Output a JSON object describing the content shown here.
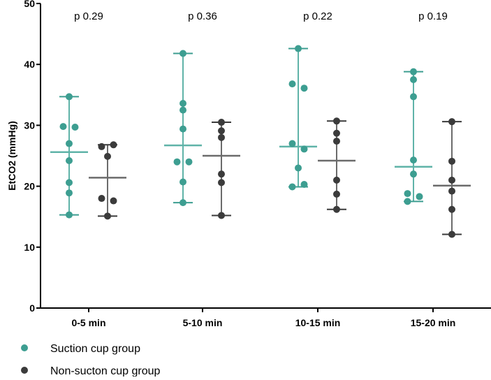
{
  "chart_data": {
    "type": "scatter",
    "title": "",
    "ylabel": "EtCO2 (mmHg)",
    "xlabel": "",
    "ylim": [
      0,
      50
    ],
    "yticks": [
      0,
      10,
      20,
      30,
      40,
      50
    ],
    "categories": [
      "0-5 min",
      "5-10 min",
      "10-15 min",
      "15-20 min"
    ],
    "annotations": [
      "p 0.29",
      "p 0.36",
      "p 0.22",
      "p 0.19"
    ],
    "legend_position": "bottom-left",
    "series": [
      {
        "name": "Suction cup group",
        "color": "#3d9e91",
        "points": [
          [
            34.7,
            29.8,
            29.7,
            27.0,
            24.2,
            20.6,
            18.9,
            15.3
          ],
          [
            41.8,
            33.6,
            32.5,
            29.4,
            24.0,
            24.0,
            20.7,
            17.3
          ],
          [
            42.6,
            36.8,
            36.1,
            27.0,
            26.1,
            23.0,
            20.3,
            19.9
          ],
          [
            38.8,
            37.5,
            34.7,
            24.3,
            22.0,
            18.8,
            18.3,
            17.5
          ]
        ],
        "center": [
          25.6,
          26.7,
          26.5,
          23.2
        ],
        "range": [
          [
            15.3,
            34.7
          ],
          [
            17.3,
            41.8
          ],
          [
            19.9,
            42.6
          ],
          [
            17.5,
            38.8
          ]
        ]
      },
      {
        "name": "Non-sucton cup group",
        "color": "#3b3b3b",
        "points": [
          [
            26.8,
            26.5,
            24.9,
            18.0,
            17.6,
            15.1
          ],
          [
            30.5,
            29.1,
            28.0,
            22.0,
            20.6,
            15.2
          ],
          [
            30.7,
            28.7,
            27.4,
            21.0,
            18.7,
            16.2
          ],
          [
            30.6,
            24.1,
            21.0,
            19.2,
            16.2,
            12.1
          ]
        ],
        "center": [
          21.4,
          25.0,
          24.2,
          20.1
        ],
        "range": [
          [
            15.1,
            26.8
          ],
          [
            15.2,
            30.5
          ],
          [
            16.2,
            30.7
          ],
          [
            12.1,
            30.6
          ]
        ]
      }
    ]
  }
}
